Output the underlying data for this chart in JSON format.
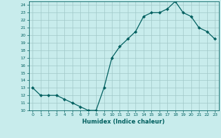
{
  "x": [
    0,
    1,
    2,
    3,
    4,
    5,
    6,
    7,
    8,
    9,
    10,
    11,
    12,
    13,
    14,
    15,
    16,
    17,
    18,
    19,
    20,
    21,
    22,
    23
  ],
  "y": [
    13,
    12,
    12,
    12,
    11.5,
    11,
    10.5,
    10,
    10,
    13,
    17,
    18.5,
    19.5,
    20.5,
    22.5,
    23,
    23,
    23.5,
    24.5,
    23,
    22.5,
    21,
    20.5,
    19.5
  ],
  "line_color": "#005f5f",
  "marker_color": "#005f5f",
  "bg_color": "#c8ecec",
  "grid_color": "#a0c8c8",
  "xlabel": "Humidex (Indice chaleur)",
  "ylim": [
    10,
    24.5
  ],
  "xlim": [
    -0.5,
    23.5
  ],
  "yticks": [
    10,
    11,
    12,
    13,
    14,
    15,
    16,
    17,
    18,
    19,
    20,
    21,
    22,
    23,
    24
  ],
  "xticks": [
    0,
    1,
    2,
    3,
    4,
    5,
    6,
    7,
    8,
    9,
    10,
    11,
    12,
    13,
    14,
    15,
    16,
    17,
    18,
    19,
    20,
    21,
    22,
    23
  ],
  "tick_color": "#005f5f",
  "axis_color": "#005f5f",
  "xlabel_fontsize": 6.0,
  "tick_fontsize": 4.5
}
